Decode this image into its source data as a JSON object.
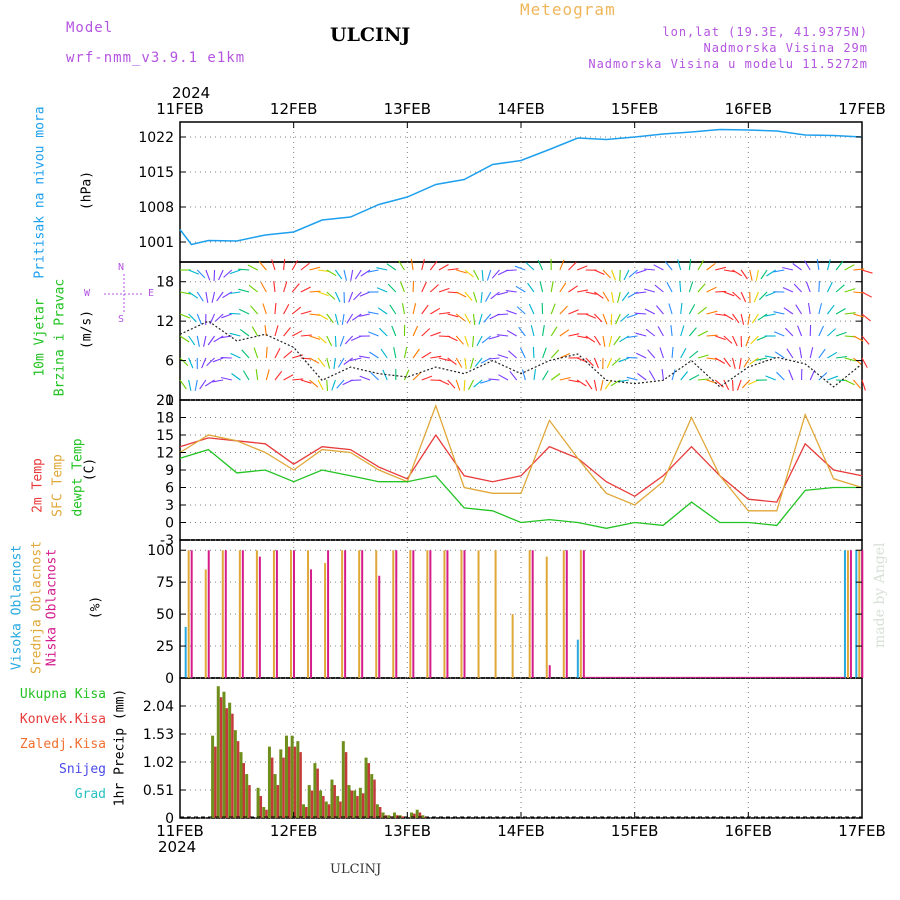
{
  "header": {
    "model_label": "Model",
    "model_name": "wrf-nmm_v3.9.1 e1km",
    "station": "ULCINJ",
    "meteogram": "Meteogram",
    "lonlat": "lon,lat (19.3E, 41.9375N)",
    "altitude": "Nadmorska Visina 29m",
    "model_altitude": "Nadmorska Visina u modelu 11.5272m",
    "year": "2024",
    "bottom_station": "ULCINJ",
    "credit": "made by Angel"
  },
  "colors": {
    "pressure": "#1ea0ee",
    "temp2m": "#e83a3a",
    "sfc_temp": "#e0a83a",
    "dewpt": "#22c322",
    "high_cloud": "#27a9e0",
    "mid_cloud": "#e0a838",
    "low_cloud": "#d41c8c",
    "total_precip": "#6f8f1d",
    "conv_precip": "#c33a3a",
    "grid": "#808080"
  },
  "axes": {
    "time_ticks": [
      "11FEB",
      "12FEB",
      "13FEB",
      "14FEB",
      "15FEB",
      "16FEB",
      "17FEB"
    ]
  },
  "panels": {
    "pressure": {
      "label": "Pritisak na nivou mora",
      "unit": "(hPa)",
      "ticks": [
        "1001",
        "1008",
        "1015",
        "1022"
      ]
    },
    "wind": {
      "label1": "10m Vjetar",
      "label2": "Brzina i Pravac",
      "unit": "(m/s)",
      "ticks": [
        "0",
        "6",
        "12",
        "18"
      ],
      "compass_n": "N",
      "compass_w": "W",
      "compass_e": "E",
      "compass_s": "S"
    },
    "temp": {
      "label1": "2m Temp",
      "label2": "SFC Temp",
      "label3": "dewpt Temp",
      "unit": "(C)",
      "ticks": [
        "-3",
        "0",
        "3",
        "6",
        "9",
        "12",
        "15",
        "18",
        "21"
      ]
    },
    "cloud": {
      "label1": "Visoka Oblacnost",
      "label2": "Srednja Oblacnost",
      "label3": "Niska Oblacnost",
      "unit": "(%)",
      "ticks": [
        "0",
        "25",
        "50",
        "75",
        "100"
      ]
    },
    "precip": {
      "legend": [
        "Ukupna Kisa",
        "Konvek.Kisa",
        "Zaledj.Kisa",
        "Snijeg",
        "Grad"
      ],
      "unit": "1hr Precip (mm)",
      "ticks": [
        "0",
        "0.51",
        "1.02",
        "1.53",
        "2.04"
      ]
    }
  },
  "chart_data": [
    {
      "type": "line",
      "title": "Pritisak na nivou mora",
      "ylabel": "(hPa)",
      "ylim": [
        997,
        1025
      ],
      "x_days": [
        0,
        0.1,
        0.25,
        0.5,
        0.75,
        1.0,
        1.25,
        1.5,
        1.75,
        2.0,
        2.25,
        2.5,
        2.75,
        3.0,
        3.25,
        3.5,
        3.75,
        4.0,
        4.25,
        4.5,
        4.75,
        5.0,
        5.25,
        5.5,
        5.75,
        6.0
      ],
      "series": [
        {
          "values": [
            1003.5,
            1000.5,
            1001.3,
            1001.2,
            1002.4,
            1003.0,
            1005.4,
            1006.0,
            1008.5,
            1010.0,
            1012.5,
            1013.5,
            1016.5,
            1017.3,
            1019.5,
            1021.8,
            1021.5,
            1022.0,
            1022.6,
            1023.0,
            1023.5,
            1023.4,
            1023.2,
            1022.4,
            1022.3,
            1022.0
          ]
        }
      ],
      "grid": true
    },
    {
      "type": "line",
      "title": "10m Vjetar Brzina i Pravac",
      "ylabel": "(m/s)",
      "ylim": [
        0,
        21
      ],
      "x_days": [
        0,
        0.25,
        0.5,
        0.75,
        1.0,
        1.25,
        1.5,
        1.75,
        2.0,
        2.25,
        2.5,
        2.75,
        3.0,
        3.25,
        3.5,
        3.75,
        4.0,
        4.25,
        4.5,
        4.75,
        5.0,
        5.25,
        5.5,
        5.75,
        6.0
      ],
      "series": [
        {
          "values": [
            10,
            12,
            9,
            10,
            8,
            3,
            5,
            4,
            3.5,
            5,
            4,
            6,
            4,
            6,
            7,
            3,
            2.5,
            3,
            6,
            2,
            5,
            6.5,
            5.5,
            2,
            5.5
          ]
        }
      ],
      "grid": true
    },
    {
      "type": "line",
      "title": "Temp",
      "ylabel": "(C)",
      "ylim": [
        -3,
        21
      ],
      "x_days": [
        0,
        0.25,
        0.5,
        0.75,
        1.0,
        1.25,
        1.5,
        1.75,
        2.0,
        2.25,
        2.5,
        2.75,
        3.0,
        3.25,
        3.5,
        3.75,
        4.0,
        4.25,
        4.5,
        4.75,
        5.0,
        5.25,
        5.5,
        5.75,
        6.0
      ],
      "series": [
        {
          "name": "2m Temp",
          "values": [
            13,
            14.5,
            14,
            13.5,
            10,
            13,
            12.5,
            9.5,
            7.5,
            15,
            8,
            7,
            8,
            13,
            11,
            7,
            4.5,
            8,
            13,
            8,
            4,
            3.5,
            13.5,
            9,
            8
          ]
        },
        {
          "name": "SFC Temp",
          "values": [
            12,
            15,
            14,
            12,
            9,
            12.5,
            12,
            9,
            7,
            20,
            6,
            5,
            5,
            17.5,
            11,
            5,
            3,
            7,
            18,
            8,
            2,
            2,
            18.5,
            7.5,
            6
          ]
        },
        {
          "name": "dewpt Temp",
          "values": [
            11,
            12.5,
            8.5,
            9,
            7,
            9,
            8,
            7,
            7,
            8,
            2.5,
            2,
            0,
            0.5,
            0,
            -1,
            0,
            -0.5,
            3.5,
            0,
            0,
            -0.5,
            5.5,
            6,
            6
          ]
        }
      ],
      "grid": true
    },
    {
      "type": "bar",
      "title": "Oblacnost",
      "ylabel": "(%)",
      "ylim": [
        0,
        100
      ],
      "x_days": [
        0.05,
        0.2,
        0.35,
        0.5,
        0.65,
        0.8,
        0.95,
        1.1,
        1.25,
        1.4,
        1.55,
        1.7,
        1.85,
        2.0,
        2.15,
        2.3,
        2.45,
        2.6,
        2.75,
        2.9,
        3.05,
        3.2,
        3.35,
        3.5,
        5.85,
        5.95
      ],
      "series": [
        {
          "name": "Visoka Oblacnost",
          "values": [
            40,
            0,
            0,
            0,
            0,
            0,
            0,
            0,
            0,
            0,
            0,
            0,
            0,
            0,
            0,
            0,
            0,
            0,
            0,
            0,
            0,
            0,
            0,
            30,
            100,
            100
          ]
        },
        {
          "name": "Srednja Oblacnost",
          "values": [
            100,
            85,
            100,
            100,
            100,
            100,
            100,
            100,
            90,
            100,
            100,
            100,
            100,
            100,
            100,
            100,
            100,
            100,
            100,
            50,
            100,
            95,
            100,
            100,
            100,
            100
          ]
        },
        {
          "name": "Niska Oblacnost",
          "values": [
            100,
            100,
            100,
            100,
            95,
            100,
            100,
            85,
            100,
            100,
            100,
            80,
            100,
            100,
            100,
            100,
            100,
            0,
            0,
            0,
            100,
            10,
            100,
            100,
            100,
            100
          ]
        }
      ],
      "grid": true
    },
    {
      "type": "bar",
      "title": "1hr Precip",
      "ylabel": "1hr Precip (mm)",
      "ylim": [
        0,
        2.55
      ],
      "x_days": [
        0.3,
        0.35,
        0.4,
        0.45,
        0.5,
        0.55,
        0.6,
        0.7,
        0.75,
        0.8,
        0.85,
        0.9,
        0.95,
        1.0,
        1.05,
        1.1,
        1.15,
        1.2,
        1.25,
        1.3,
        1.35,
        1.4,
        1.45,
        1.5,
        1.55,
        1.6,
        1.65,
        1.7,
        1.75,
        1.8,
        1.85,
        1.9,
        1.95,
        2.05,
        2.1,
        2.15
      ],
      "series": [
        {
          "name": "Ukupna Kisa",
          "values": [
            1.5,
            2.4,
            2.3,
            2.1,
            1.6,
            1.2,
            0.8,
            0.55,
            0.2,
            1.3,
            0.8,
            1.25,
            1.5,
            1.5,
            1.4,
            0.25,
            0.6,
            1.0,
            0.5,
            0.3,
            0.7,
            0.4,
            1.4,
            0.6,
            0.5,
            0.55,
            1.1,
            0.8,
            0.25,
            0.1,
            0.05,
            0.1,
            0.05,
            0.1,
            0.15,
            0.05
          ]
        },
        {
          "name": "Konvek.Kisa",
          "values": [
            1.3,
            2.2,
            2.0,
            1.9,
            1.4,
            1.0,
            0.6,
            0.4,
            0.15,
            1.1,
            0.6,
            1.1,
            1.3,
            1.3,
            1.2,
            0.2,
            0.5,
            0.9,
            0.4,
            0.25,
            0.6,
            0.3,
            1.2,
            0.5,
            0.4,
            0.45,
            1.0,
            0.7,
            0.2,
            0.05,
            0.03,
            0.05,
            0.03,
            0.08,
            0.1,
            0.02
          ]
        }
      ],
      "grid": true
    }
  ]
}
